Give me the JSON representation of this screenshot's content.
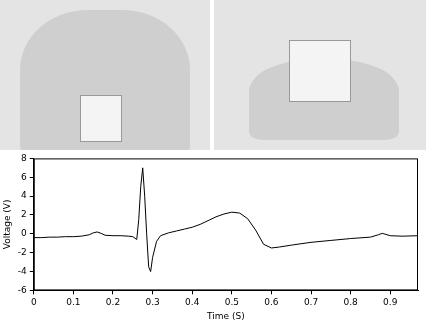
{
  "chart_data": {
    "type": "line",
    "x_label": "Time (S)",
    "y_label": "Voltage (V)",
    "x": [
      0,
      0.02,
      0.04,
      0.06,
      0.08,
      0.1,
      0.12,
      0.14,
      0.15,
      0.16,
      0.17,
      0.18,
      0.2,
      0.22,
      0.24,
      0.25,
      0.26,
      0.265,
      0.27,
      0.275,
      0.28,
      0.285,
      0.29,
      0.295,
      0.3,
      0.31,
      0.32,
      0.34,
      0.36,
      0.38,
      0.4,
      0.42,
      0.44,
      0.46,
      0.48,
      0.5,
      0.52,
      0.54,
      0.56,
      0.58,
      0.6,
      0.62,
      0.65,
      0.7,
      0.75,
      0.8,
      0.85,
      0.87,
      0.88,
      0.9,
      0.93,
      0.97
    ],
    "values": [
      -0.4,
      -0.4,
      -0.35,
      -0.35,
      -0.3,
      -0.3,
      -0.25,
      -0.1,
      0.1,
      0.2,
      0.05,
      -0.15,
      -0.2,
      -0.2,
      -0.25,
      -0.3,
      -0.6,
      1.5,
      5.0,
      7.0,
      4.0,
      0.0,
      -3.5,
      -4.0,
      -2.5,
      -0.8,
      -0.2,
      0.1,
      0.3,
      0.5,
      0.7,
      1.0,
      1.4,
      1.8,
      2.1,
      2.3,
      2.2,
      1.6,
      0.4,
      -1.1,
      -1.5,
      -1.4,
      -1.2,
      -0.9,
      -0.7,
      -0.5,
      -0.35,
      -0.1,
      0.05,
      -0.2,
      -0.25,
      -0.2
    ],
    "color": "#000000",
    "xlim": [
      0,
      0.97
    ],
    "xticks": [
      0,
      0.1,
      0.2,
      0.3,
      0.4,
      0.5,
      0.6,
      0.7,
      0.8,
      0.9
    ],
    "ylim": [
      -6,
      8
    ],
    "yticks": [
      -6,
      -4,
      -2,
      0,
      2,
      4,
      6,
      8
    ],
    "grid": false
  }
}
